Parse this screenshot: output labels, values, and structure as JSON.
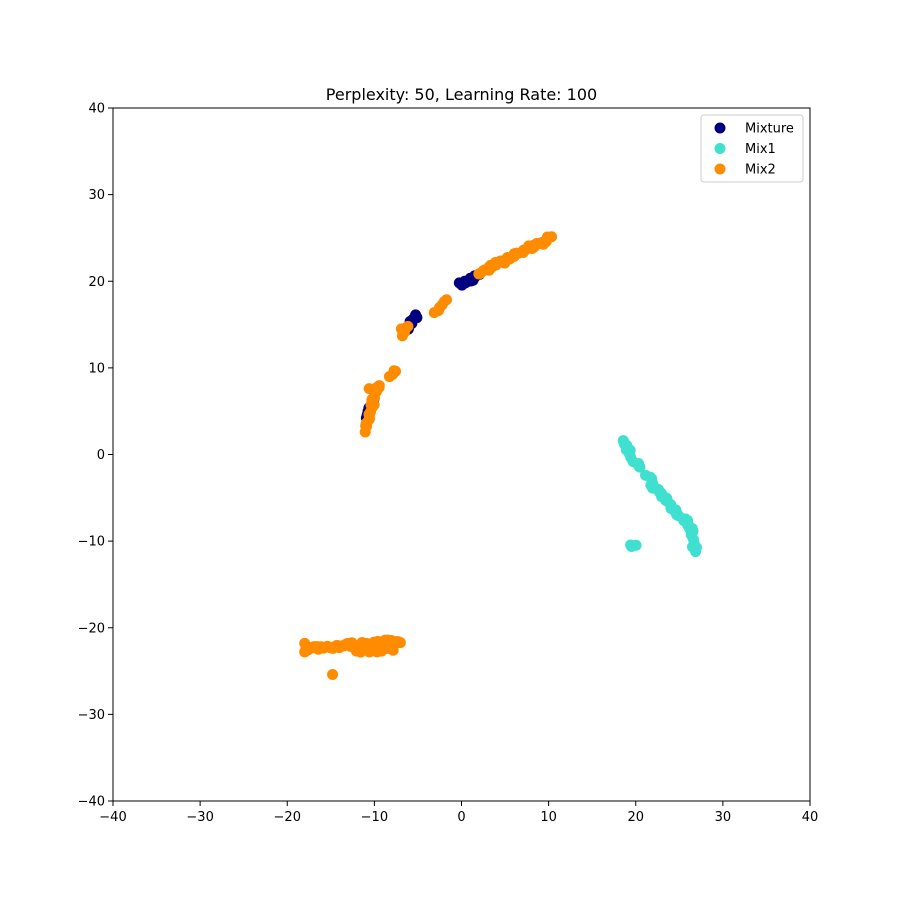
{
  "chart_data": {
    "type": "scatter",
    "title": "Perplexity: 50, Learning Rate: 100",
    "xlabel": "",
    "ylabel": "",
    "xlim": [
      -40,
      40
    ],
    "ylim": [
      -40,
      40
    ],
    "xticks": [
      -40,
      -30,
      -20,
      -10,
      0,
      10,
      20,
      30,
      40
    ],
    "yticks": [
      -40,
      -30,
      -20,
      -10,
      0,
      10,
      20,
      30,
      40
    ],
    "x_tick_labels": [
      "−40",
      "−30",
      "−20",
      "−10",
      "0",
      "10",
      "20",
      "30",
      "40"
    ],
    "y_tick_labels": [
      "−40",
      "−30",
      "−20",
      "−10",
      "0",
      "10",
      "20",
      "30",
      "40"
    ],
    "grid": false,
    "legend_position": "top-right",
    "series": [
      {
        "name": "Mixture",
        "color": "#000080",
        "segments": [
          {
            "from": [
              0.0,
              19.6
            ],
            "to": [
              2.0,
              20.8
            ],
            "count": 14
          },
          {
            "from": [
              -6.5,
              14.2
            ],
            "to": [
              -5.2,
              16.2
            ],
            "count": 12
          },
          {
            "from": [
              -11.0,
              4.0
            ],
            "to": [
              -10.2,
              6.4
            ],
            "count": 8
          }
        ],
        "points": [
          [
            1.0,
            20.2
          ],
          [
            0.5,
            19.9
          ],
          [
            1.6,
            20.6
          ],
          [
            -5.8,
            15.3
          ]
        ]
      },
      {
        "name": "Mix1",
        "color": "#40E0D0",
        "segments": [
          {
            "from": [
              18.5,
              1.6
            ],
            "to": [
              19.0,
              0.6
            ],
            "count": 5
          },
          {
            "from": [
              19.0,
              0.6
            ],
            "to": [
              20.5,
              -1.5
            ],
            "count": 8
          },
          {
            "from": [
              21.3,
              -2.6
            ],
            "to": [
              24.5,
              -6.5
            ],
            "count": 20
          },
          {
            "from": [
              24.5,
              -6.5
            ],
            "to": [
              26.3,
              -8.5
            ],
            "count": 10
          },
          {
            "from": [
              26.3,
              -8.5
            ],
            "to": [
              26.8,
              -11.4
            ],
            "count": 8
          },
          {
            "from": [
              19.2,
              -10.3
            ],
            "to": [
              19.9,
              -10.7
            ],
            "count": 4
          }
        ],
        "points": [
          [
            18.7,
            1.2
          ],
          [
            19.3,
            0.2
          ],
          [
            22.5,
            -4.0
          ],
          [
            23.5,
            -5.2
          ]
        ]
      },
      {
        "name": "Mix2",
        "color": "#FF8C00",
        "segments": [
          {
            "from": [
              2.0,
              21.0
            ],
            "to": [
              10.2,
              25.0
            ],
            "count": 40
          },
          {
            "from": [
              -3.1,
              16.2
            ],
            "to": [
              -1.8,
              17.8
            ],
            "count": 7
          },
          {
            "from": [
              -6.9,
              13.5
            ],
            "to": [
              -6.2,
              14.9
            ],
            "count": 5
          },
          {
            "from": [
              -8.2,
              8.8
            ],
            "to": [
              -7.6,
              9.8
            ],
            "count": 4
          },
          {
            "from": [
              -11.2,
              2.8
            ],
            "to": [
              -9.5,
              8.2
            ],
            "count": 20
          },
          {
            "from": [
              -18.0,
              -22.4
            ],
            "to": [
              -6.8,
              -21.5
            ],
            "count": 45
          },
          {
            "from": [
              -12.0,
              -22.6
            ],
            "to": [
              -8.0,
              -22.5
            ],
            "count": 14
          }
        ],
        "points": [
          [
            -14.8,
            -25.4
          ],
          [
            -18.0,
            -21.8
          ],
          [
            -18.0,
            -22.8
          ],
          [
            -10.6,
            7.6
          ],
          [
            -11.0,
            3.3
          ],
          [
            -6.9,
            14.5
          ]
        ]
      }
    ]
  }
}
